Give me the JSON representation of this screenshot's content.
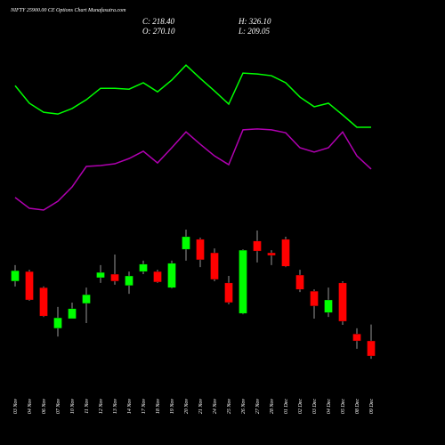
{
  "chart_data": {
    "type": "candlestick",
    "title": "NIFTY 25900.00 CE Options Chart Munafasutra.com",
    "stats": [
      "C: 218.40",
      "H: 326.10",
      "O: 270.10",
      "L: 209.05"
    ],
    "categories": [
      "03 Nov",
      "04 Nov",
      "06 Nov",
      "07 Nov",
      "10 Nov",
      "11 Nov",
      "12 Nov",
      "13 Nov",
      "14 Nov",
      "17 Nov",
      "18 Nov",
      "19 Nov",
      "20 Nov",
      "21 Nov",
      "24 Nov",
      "25 Nov",
      "26 Nov",
      "27 Nov",
      "28 Nov",
      "01 Dec",
      "02 Dec",
      "03 Dec",
      "04 Dec",
      "05 Dec",
      "08 Dec",
      "09 Dec"
    ],
    "open": [
      474,
      507,
      452,
      313,
      346,
      398,
      486,
      498,
      459,
      507,
      507,
      452,
      583,
      617,
      571,
      468,
      364,
      611,
      571,
      617,
      495,
      440,
      367,
      468,
      294,
      270.1
    ],
    "high": [
      529,
      513,
      456,
      386,
      401,
      452,
      529,
      565,
      507,
      544,
      513,
      544,
      650,
      623,
      586,
      492,
      583,
      647,
      580,
      626,
      513,
      446,
      452,
      474,
      313,
      326.1
    ],
    "low": [
      456,
      407,
      352,
      285,
      346,
      331,
      468,
      462,
      431,
      498,
      468,
      449,
      544,
      522,
      474,
      395,
      361,
      538,
      529,
      522,
      437,
      346,
      352,
      325,
      243,
      209.05
    ],
    "close": [
      510,
      410,
      355,
      349,
      380,
      428,
      504,
      474,
      492,
      532,
      471,
      535,
      626,
      547,
      480,
      401,
      580,
      577,
      562,
      525,
      446,
      389,
      410,
      337,
      270,
      218.4
    ],
    "up_color": "#00ff00",
    "down_color": "#ff0000",
    "lines": [
      {
        "color": "#00ff00",
        "values": [
          1142,
          1082,
          1051,
          1045,
          1064,
          1094,
          1133,
          1133,
          1130,
          1152,
          1121,
          1161,
          1212,
          1167,
          1124,
          1079,
          1185,
          1182,
          1176,
          1152,
          1103,
          1070,
          1082,
          1042,
          1000,
          1000
        ]
      },
      {
        "color": "#b000b0",
        "values": [
          760,
          723,
          717,
          747,
          796,
          866,
          869,
          875,
          893,
          918,
          878,
          930,
          984,
          942,
          902,
          872,
          991,
          994,
          991,
          981,
          930,
          915,
          930,
          984,
          902,
          857
        ]
      }
    ],
    "ylim": [
      36,
      1313
    ]
  }
}
